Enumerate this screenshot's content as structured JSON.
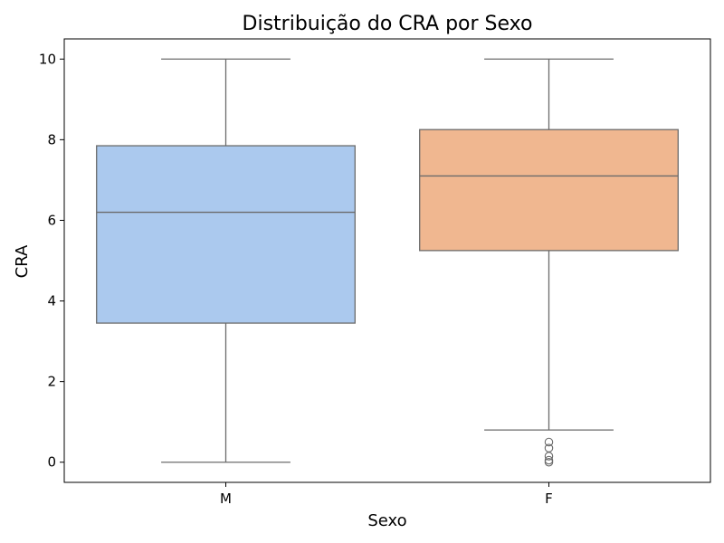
{
  "chart_data": {
    "type": "box",
    "title": "Distribuição do CRA por Sexo",
    "xlabel": "Sexo",
    "ylabel": "CRA",
    "categories": [
      "M",
      "F"
    ],
    "ylim": [
      -0.5,
      10.5
    ],
    "yticks": [
      0,
      2,
      4,
      6,
      8,
      10
    ],
    "grid": false,
    "boxes": [
      {
        "category": "M",
        "whisker_low": 0,
        "q1": 3.45,
        "median": 6.2,
        "q3": 7.85,
        "whisker_high": 10,
        "outliers": [],
        "color": "#abc9ee"
      },
      {
        "category": "F",
        "whisker_low": 0.8,
        "q1": 5.25,
        "median": 7.1,
        "q3": 8.25,
        "whisker_high": 10,
        "outliers": [
          0.5,
          0.35,
          0.15,
          0.05,
          0.0
        ],
        "color": "#f0b790"
      }
    ],
    "line_color": "#6b6b6b"
  }
}
